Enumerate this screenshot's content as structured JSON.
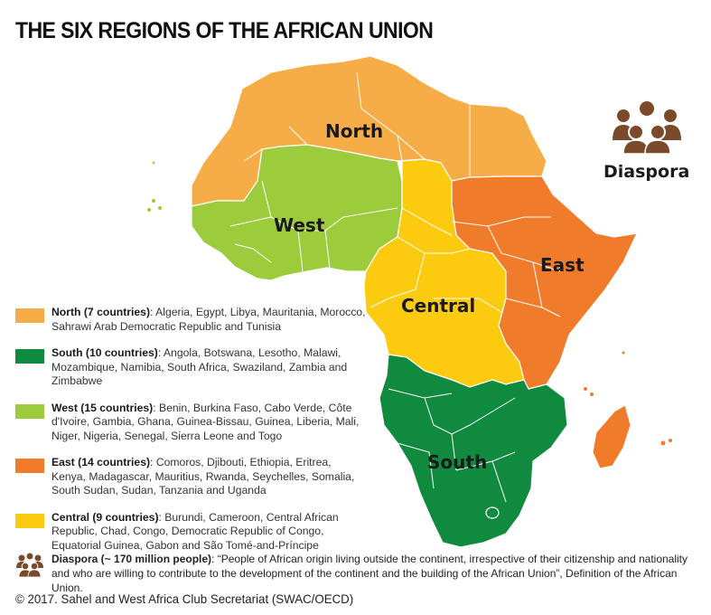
{
  "title": "THE SIX REGIONS OF THE AFRICAN UNION",
  "map": {
    "region_labels": {
      "north": "North",
      "west": "West",
      "central": "Central",
      "east": "East",
      "south": "South",
      "diaspora": "Diaspora"
    },
    "colors": {
      "north": "#f7ad47",
      "south": "#0f8a3f",
      "west": "#9ccb3b",
      "east": "#f07b2b",
      "central": "#fcca0e",
      "diaspora_icon": "#7b4a2a"
    }
  },
  "legend": [
    {
      "heading": "North (7 countries)",
      "countries": ": Algeria, Egypt, Libya, Mauritania, Morocco, Sahrawi Arab Democratic Republic and Tunisia",
      "color": "#f7ad47"
    },
    {
      "heading": "South (10 countries)",
      "countries": ": Angola, Botswana, Lesotho, Malawi, Mozambique, Namibia, South Africa, Swaziland, Zambia and Zimbabwe",
      "color": "#0f8a3f"
    },
    {
      "heading": "West (15 countries)",
      "countries": ": Benin, Burkina Faso, Cabo Verde, Côte d'Ivoire, Gambia, Ghana, Guinea-Bissau, Guinea, Liberia, Mali, Niger, Nigeria, Senegal, Sierra Leone and Togo",
      "color": "#9ccb3b"
    },
    {
      "heading": "East (14 countries)",
      "countries": ": Comoros, Djibouti, Ethiopia, Eritrea, Kenya, Madagascar, Mauritius, Rwanda, Seychelles, Somalia, South Sudan, Sudan, Tanzania and Uganda",
      "color": "#f07b2b"
    },
    {
      "heading": "Central (9 countries)",
      "countries": ": Burundi, Cameroon, Central African Republic, Chad, Congo, Democratic Republic of Congo, Equatorial Guinea, Gabon and São Tomé-and-Príncipe",
      "color": "#fcca0e"
    }
  ],
  "diaspora_note": {
    "heading": "Diaspora (~ 170 million people)",
    "text": ":  “People of African origin living outside the continent, irrespective of their citizenship and nationality",
    "text2": "and who are willing to contribute to the development of the continent and the building of the African Union”, Definition of the African Union."
  },
  "credit": "© 2017. Sahel and West Africa Club Secretariat (SWAC/OECD)"
}
